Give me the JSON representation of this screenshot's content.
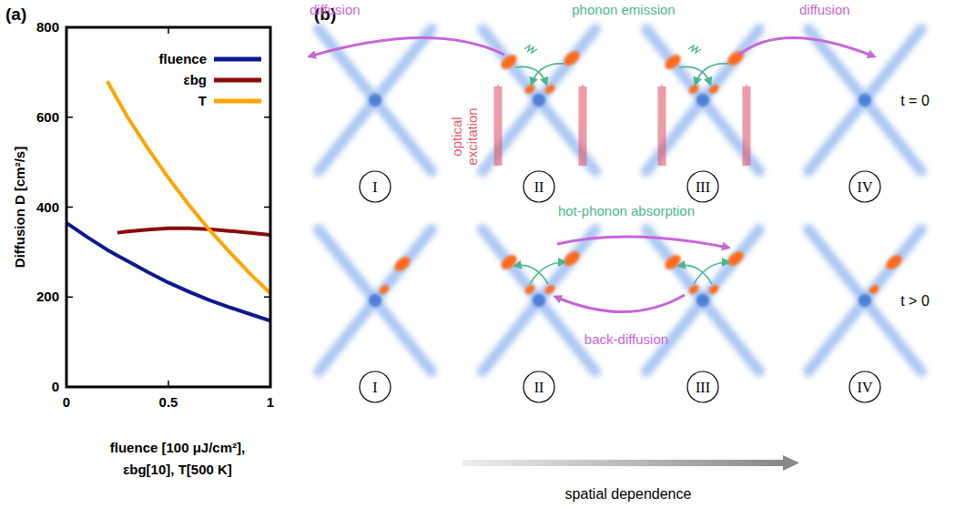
{
  "chart_data": {
    "type": "line",
    "panel_label": "(a)",
    "y_label": "Diffusion D [cm²/s]",
    "x_label": [
      "fluence [100 μJ/cm²],",
      "εbg[10], T[500 K]"
    ],
    "x": [
      0,
      0.1,
      0.2,
      0.25,
      0.3,
      0.4,
      0.5,
      0.6,
      0.7,
      0.8,
      0.9,
      1.0
    ],
    "xlim": [
      0,
      1
    ],
    "xticks": [
      0,
      0.5,
      1
    ],
    "ylim": [
      0,
      800
    ],
    "yticks": [
      0,
      200,
      400,
      600,
      800
    ],
    "legend": "upper right",
    "series": [
      {
        "name": "fluence",
        "color": "#0d1a8c",
        "values": [
          365,
          334,
          305,
          292,
          280,
          255,
          232,
          212,
          193,
          177,
          162,
          147
        ]
      },
      {
        "name": "εbg",
        "color": "#8b0a0a",
        "values": [
          null,
          null,
          null,
          343,
          346,
          350,
          353,
          353,
          351,
          347,
          343,
          338
        ]
      },
      {
        "name": "T",
        "color": "#ffa500",
        "values": [
          null,
          null,
          680,
          640,
          600,
          530,
          465,
          405,
          350,
          300,
          252,
          208
        ]
      }
    ]
  },
  "diagram": {
    "panel_label": "(b)",
    "cones": [
      "I",
      "II",
      "III",
      "IV"
    ],
    "rows": [
      {
        "time": "t = 0",
        "diffusion_left": "diffusion",
        "process": "phonon emission",
        "excitation": "optical excitation",
        "diffusion_right": "diffusion"
      },
      {
        "time": "t > 0",
        "process": "hot-phonon absorption",
        "back": "back-diffusion"
      }
    ],
    "axis_label": "spatial dependence"
  }
}
